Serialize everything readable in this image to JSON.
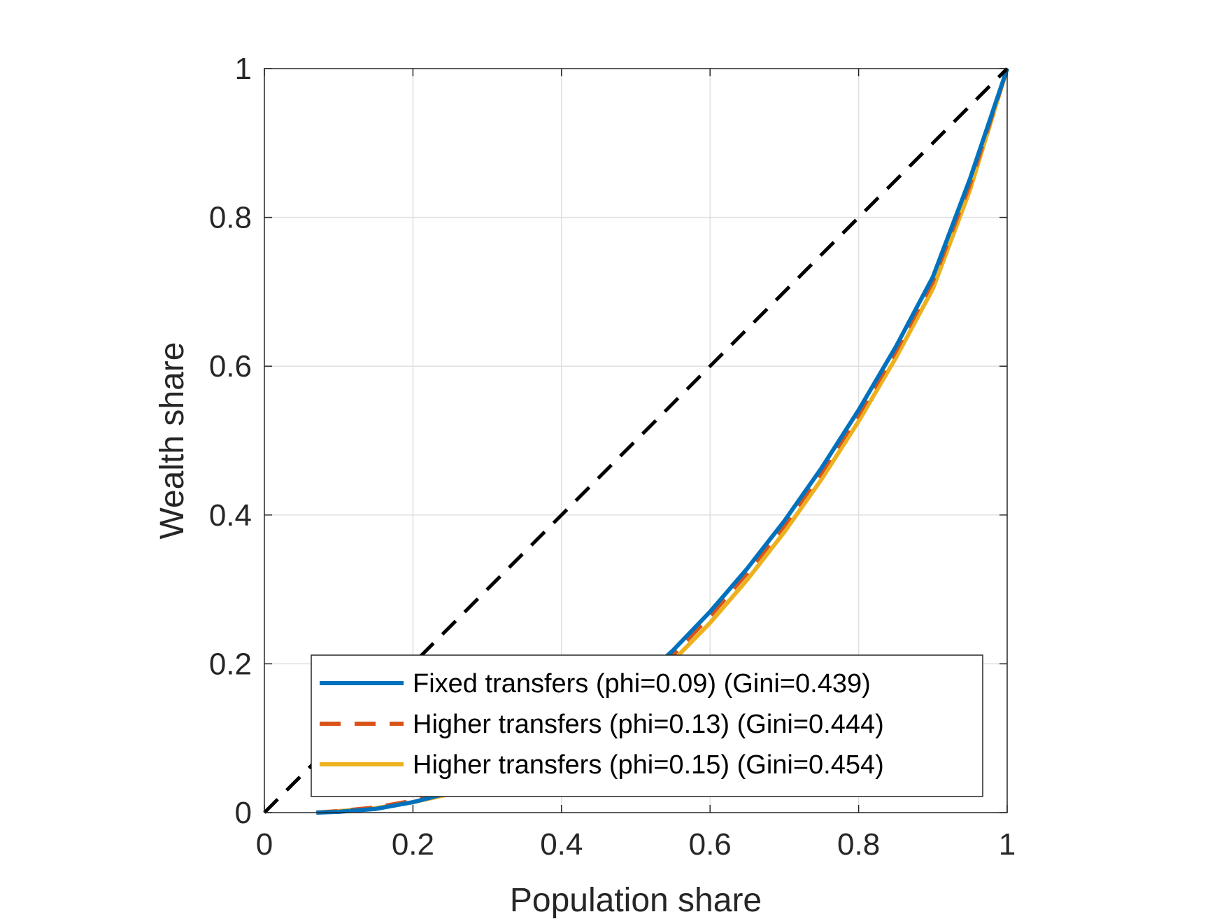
{
  "chart_data": {
    "type": "line",
    "xlabel": "Population share",
    "ylabel": "Wealth share",
    "xlim": [
      0,
      1
    ],
    "ylim": [
      0,
      1
    ],
    "xticks": [
      "0",
      "0.2",
      "0.4",
      "0.6",
      "0.8",
      "1"
    ],
    "yticks": [
      "0",
      "0.2",
      "0.4",
      "0.6",
      "0.8",
      "1"
    ],
    "grid": true,
    "legend_position": "bottom-right",
    "series": [
      {
        "name": "Fixed transfers (phi=0.09) (Gini=0.439)",
        "color": "#0072BD",
        "style": "solid",
        "x": [
          0.07,
          0.1,
          0.15,
          0.2,
          0.25,
          0.3,
          0.35,
          0.4,
          0.45,
          0.5,
          0.55,
          0.6,
          0.65,
          0.7,
          0.75,
          0.8,
          0.85,
          0.9,
          0.95,
          1.0
        ],
        "y": [
          0.0,
          0.001,
          0.005,
          0.014,
          0.027,
          0.045,
          0.068,
          0.097,
          0.132,
          0.172,
          0.218,
          0.27,
          0.328,
          0.392,
          0.463,
          0.541,
          0.626,
          0.72,
          0.852,
          1.0
        ]
      },
      {
        "name": "Higher transfers (phi=0.13) (Gini=0.444)",
        "color": "#D95319",
        "style": "dashed",
        "x": [
          0.07,
          0.1,
          0.15,
          0.2,
          0.25,
          0.3,
          0.35,
          0.4,
          0.45,
          0.5,
          0.55,
          0.6,
          0.65,
          0.7,
          0.75,
          0.8,
          0.85,
          0.9,
          0.95,
          1.0
        ],
        "y": [
          0.0,
          0.002,
          0.007,
          0.016,
          0.028,
          0.045,
          0.067,
          0.095,
          0.128,
          0.167,
          0.212,
          0.264,
          0.322,
          0.386,
          0.457,
          0.535,
          0.62,
          0.714,
          0.845,
          1.0
        ]
      },
      {
        "name": "Higher transfers (phi=0.15) (Gini=0.454)",
        "color": "#EDB120",
        "style": "solid",
        "x": [
          0.07,
          0.1,
          0.15,
          0.2,
          0.25,
          0.3,
          0.35,
          0.4,
          0.45,
          0.5,
          0.55,
          0.6,
          0.65,
          0.7,
          0.75,
          0.8,
          0.85,
          0.9,
          0.95,
          1.0
        ],
        "y": [
          0.0,
          0.002,
          0.006,
          0.014,
          0.025,
          0.041,
          0.062,
          0.089,
          0.121,
          0.159,
          0.204,
          0.255,
          0.313,
          0.377,
          0.448,
          0.526,
          0.611,
          0.704,
          0.837,
          1.0
        ]
      },
      {
        "color": "#000000",
        "style": "dashed",
        "x": [
          0,
          1
        ],
        "y": [
          0,
          1
        ]
      }
    ]
  }
}
